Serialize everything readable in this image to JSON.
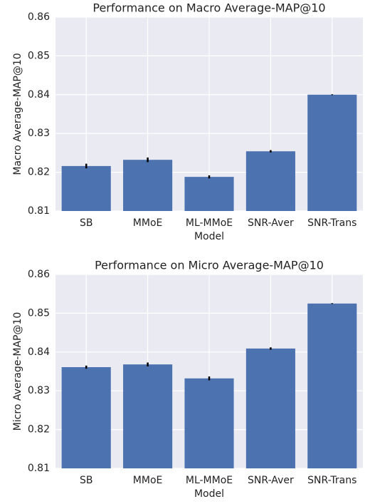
{
  "chart_data": [
    {
      "type": "bar",
      "title": "Performance on Macro Average-MAP@10",
      "x_label": "Model",
      "y_label": "Macro Average-MAP@10",
      "categories": [
        "SB",
        "MMoE",
        "ML-MMoE",
        "SNR-Aver",
        "SNR-Trans"
      ],
      "values": [
        0.8216,
        0.8232,
        0.8188,
        0.8254,
        0.84
      ],
      "errors": [
        0.0006,
        0.0006,
        0.0004,
        0.0003,
        0.0001
      ],
      "color": "#4c72b0",
      "ylim": [
        0.81,
        0.86
      ],
      "yticks": [
        0.81,
        0.82,
        0.83,
        0.84,
        0.85,
        0.86
      ],
      "grid": true
    },
    {
      "type": "bar",
      "title": "Performance on Micro Average-MAP@10",
      "x_label": "Model",
      "y_label": "Micro Average-MAP@10",
      "categories": [
        "SB",
        "MMoE",
        "ML-MMoE",
        "SNR-Aver",
        "SNR-Trans"
      ],
      "values": [
        0.8361,
        0.8368,
        0.8332,
        0.8409,
        0.8525
      ],
      "errors": [
        0.0004,
        0.0005,
        0.0005,
        0.0003,
        0.0001
      ],
      "color": "#4c72b0",
      "ylim": [
        0.81,
        0.86
      ],
      "yticks": [
        0.81,
        0.82,
        0.83,
        0.84,
        0.85,
        0.86
      ],
      "grid": true
    }
  ]
}
